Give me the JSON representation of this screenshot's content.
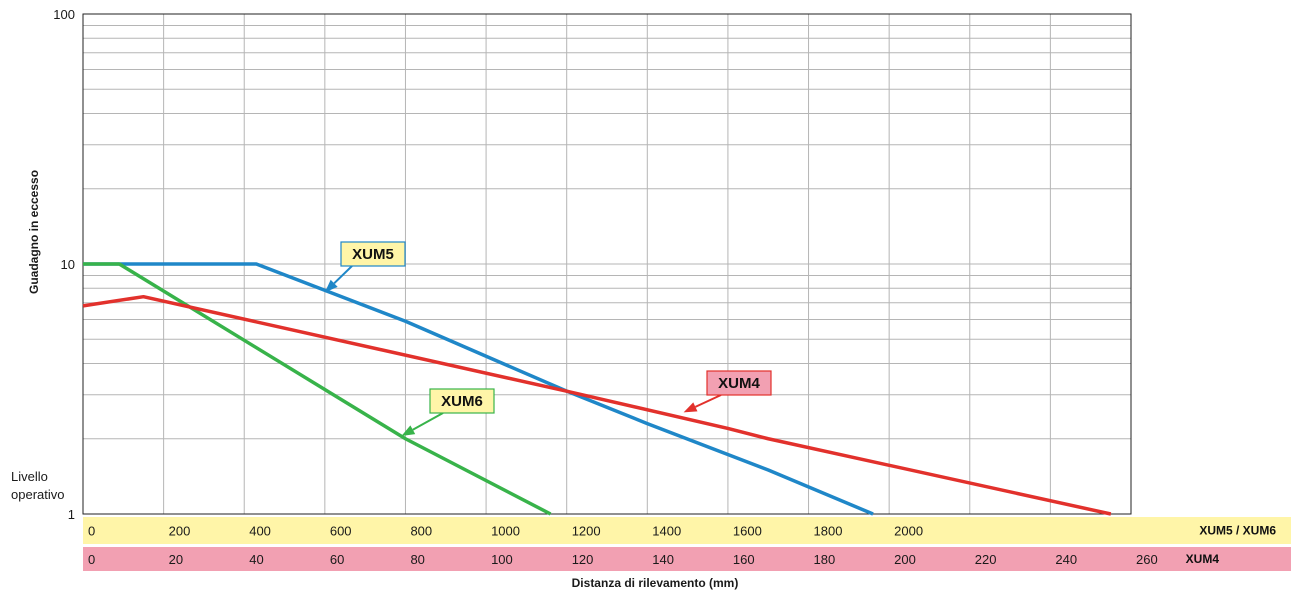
{
  "chart_data": {
    "type": "line",
    "ylabel": "Guadagno in eccesso",
    "xlabel": "Distanza di rilevamento (mm)",
    "y_scale": "log",
    "ylim": [
      1,
      100
    ],
    "y_ticks": [
      "1",
      "10",
      "100"
    ],
    "operating_level_label": [
      "Livello",
      "operativo"
    ],
    "grid": true,
    "x_scales": [
      {
        "name": "XUM5 / XUM6",
        "ticks": [
          0,
          200,
          400,
          600,
          800,
          1000,
          1200,
          1400,
          1600,
          1800,
          2000
        ],
        "xlim": [
          0,
          2600
        ],
        "color": "#fff5a8"
      },
      {
        "name": "XUM4",
        "ticks": [
          0,
          20,
          40,
          60,
          80,
          100,
          120,
          140,
          160,
          180,
          200,
          220,
          240,
          260
        ],
        "xlim": [
          0,
          260
        ],
        "color": "#f2a0b2"
      }
    ],
    "series": [
      {
        "name": "XUM5",
        "color": "#1f87c8",
        "callout_bg": "#fff5a8",
        "scale": "XUM5 / XUM6",
        "x": [
          0,
          430,
          800,
          1200,
          1400,
          1700,
          1960
        ],
        "y": [
          10,
          10,
          5.9,
          3.1,
          2.3,
          1.5,
          1.0
        ]
      },
      {
        "name": "XUM6",
        "color": "#38b34a",
        "callout_bg": "#fff5a8",
        "scale": "XUM5 / XUM6",
        "x": [
          0,
          90,
          800,
          1160
        ],
        "y": [
          10,
          10,
          2.0,
          1.0
        ]
      },
      {
        "name": "XUM4",
        "color": "#e2312c",
        "callout_bg": "#f2a0b2",
        "scale": "XUM4",
        "x": [
          0,
          15,
          120,
          160,
          170,
          255
        ],
        "y": [
          6.8,
          7.4,
          3.1,
          2.2,
          2.0,
          1.0
        ]
      }
    ]
  }
}
